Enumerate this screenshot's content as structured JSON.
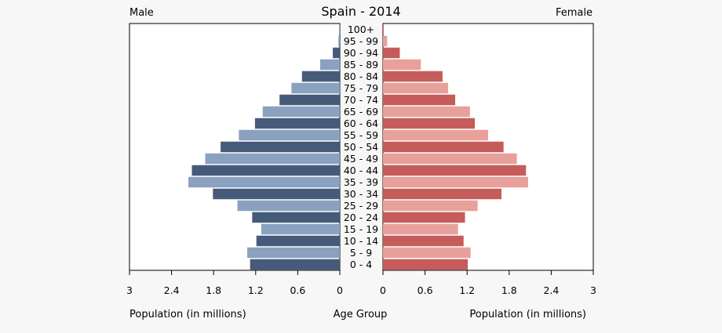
{
  "chart_data": {
    "type": "bar",
    "subtype": "population-pyramid",
    "title": "Spain - 2014",
    "left_label": "Male",
    "right_label": "Female",
    "xlabel_left": "Population (in millions)",
    "xlabel_center": "Age Group",
    "xlabel_right": "Population (in millions)",
    "xlim": [
      0,
      3
    ],
    "male_ticks": [
      "3",
      "2.4",
      "1.8",
      "1.2",
      "0.6",
      "0"
    ],
    "female_ticks": [
      "0",
      "0.6",
      "1.2",
      "1.8",
      "2.4",
      "3"
    ],
    "tick_values": [
      3,
      2.4,
      1.8,
      1.2,
      0.6,
      0
    ],
    "categories": [
      "100+",
      "95 - 99",
      "90 - 94",
      "85 - 89",
      "80 - 84",
      "75 - 79",
      "70 - 74",
      "65 - 69",
      "60 - 64",
      "55 - 59",
      "50 - 54",
      "45 - 49",
      "40 - 44",
      "35 - 39",
      "30 - 34",
      "25 - 29",
      "20 - 24",
      "15 - 19",
      "10 - 14",
      "5 - 9",
      "0 - 4"
    ],
    "series": [
      {
        "name": "Male",
        "side": "left",
        "colors": [
          "#8aa1bf",
          "#465b7a"
        ],
        "values": [
          0.005,
          0.02,
          0.1,
          0.28,
          0.54,
          0.69,
          0.86,
          1.1,
          1.21,
          1.44,
          1.7,
          1.92,
          2.11,
          2.16,
          1.81,
          1.46,
          1.25,
          1.12,
          1.19,
          1.32,
          1.28
        ]
      },
      {
        "name": "Female",
        "side": "right",
        "colors": [
          "#e8a09a",
          "#c65c5a"
        ],
        "values": [
          0.01,
          0.06,
          0.24,
          0.54,
          0.85,
          0.93,
          1.03,
          1.24,
          1.31,
          1.5,
          1.72,
          1.91,
          2.04,
          2.07,
          1.69,
          1.35,
          1.17,
          1.07,
          1.15,
          1.25,
          1.21
        ]
      }
    ]
  }
}
